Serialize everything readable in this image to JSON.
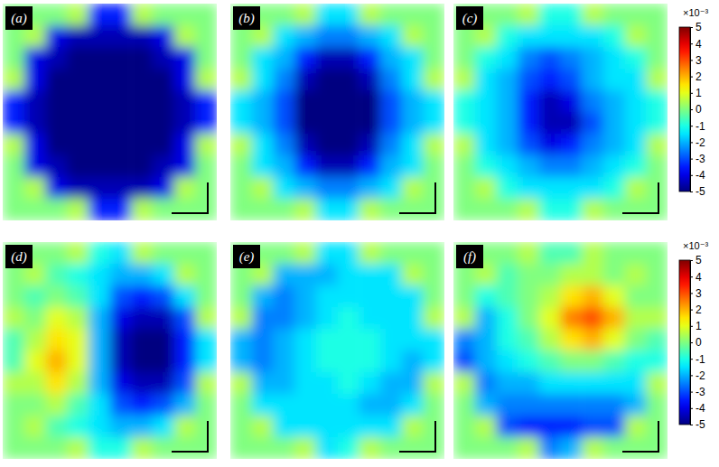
{
  "chart_data": {
    "type": "heatmap",
    "panels": [
      {
        "title": "(a)",
        "cells": [
          [
            0,
            0,
            0,
            0.5,
            -3.5,
            -3.5,
            0.5,
            0,
            0,
            0
          ],
          [
            0,
            0.5,
            -4,
            -4.5,
            -4.5,
            -4.5,
            -4.5,
            -4,
            0.5,
            0
          ],
          [
            0,
            -4,
            -4.5,
            -5,
            -5,
            -5,
            -5,
            -4.5,
            -4,
            0
          ],
          [
            0.5,
            -4,
            -5,
            -5,
            -5,
            -5,
            -5,
            -5,
            -4,
            0.5
          ],
          [
            -3.5,
            -4.5,
            -5,
            -5,
            -5,
            -5,
            -5,
            -5,
            -4.5,
            -3.5
          ],
          [
            -3.5,
            -4.5,
            -5,
            -5,
            -5,
            -5,
            -5,
            -5,
            -4.5,
            -3.5
          ],
          [
            0.5,
            -4,
            -5,
            -5,
            -5,
            -5,
            -5,
            -5,
            -4,
            0.5
          ],
          [
            0,
            -4,
            -4.5,
            -5,
            -5,
            -5,
            -5,
            -4.5,
            -4,
            0
          ],
          [
            0,
            0.5,
            -4,
            -4.5,
            -4.5,
            -4.5,
            -4.5,
            -4,
            0.5,
            0
          ],
          [
            0,
            0,
            0,
            0.5,
            -3.5,
            -3.5,
            0.5,
            0,
            0,
            0
          ]
        ]
      },
      {
        "title": "(b)",
        "cells": [
          [
            0,
            0,
            0,
            0.5,
            -1.5,
            -1.5,
            0.5,
            0,
            0,
            0
          ],
          [
            0,
            0.5,
            -1.5,
            -2,
            -2.5,
            -2.5,
            -2,
            -1.5,
            0.5,
            0
          ],
          [
            0,
            -1.5,
            -2,
            -3.5,
            -4.5,
            -4.5,
            -3.5,
            -2,
            -1.5,
            0
          ],
          [
            0.5,
            -1.5,
            -2.5,
            -4.5,
            -5,
            -5,
            -4.5,
            -2.5,
            -1.5,
            0.5
          ],
          [
            -1.5,
            -2,
            -3,
            -5,
            -5,
            -5,
            -5,
            -3,
            -2,
            -1.5
          ],
          [
            -1.5,
            -2,
            -3,
            -5,
            -5,
            -5,
            -5,
            -3,
            -2,
            -1.5
          ],
          [
            0.5,
            -1.5,
            -2.5,
            -4.5,
            -5,
            -5,
            -4.5,
            -2.5,
            -1.5,
            0.5
          ],
          [
            0,
            -1.5,
            -2,
            -3.5,
            -4.5,
            -4.5,
            -3.5,
            -2,
            -1.5,
            0
          ],
          [
            0,
            0.5,
            -1.5,
            -2,
            -2.5,
            -2.5,
            -2,
            -1.5,
            0.5,
            0
          ],
          [
            0,
            0,
            0,
            0.5,
            -1.5,
            -1.5,
            0.5,
            0,
            0,
            0
          ]
        ]
      },
      {
        "title": "(c)",
        "cells": [
          [
            0,
            0,
            0,
            0.5,
            -1,
            -1,
            0.5,
            0,
            0,
            0
          ],
          [
            0,
            0.5,
            -1,
            -1.5,
            -1.5,
            -1.5,
            -1.5,
            -1,
            0.5,
            0
          ],
          [
            0,
            -1,
            -1.5,
            -2.5,
            -3,
            -2.5,
            -2,
            -1.5,
            -1,
            0
          ],
          [
            0.5,
            -1.5,
            -2,
            -3,
            -3.5,
            -3,
            -2,
            -1.5,
            -1.5,
            0.5
          ],
          [
            -1,
            -1.5,
            -2,
            -3.5,
            -4.5,
            -4,
            -2.5,
            -2,
            -1.5,
            -1
          ],
          [
            -1,
            -1.5,
            -2,
            -3.5,
            -4.5,
            -4.5,
            -3,
            -2,
            -1.5,
            -1
          ],
          [
            0.5,
            -1.5,
            -2,
            -3,
            -4,
            -3.5,
            -2.5,
            -2,
            -1.5,
            0.5
          ],
          [
            0,
            -1,
            -1.5,
            -2,
            -2.5,
            -2.5,
            -2,
            -1.5,
            -1,
            0
          ],
          [
            0,
            0.5,
            -1,
            -1.5,
            -1.5,
            -1.5,
            -1.5,
            -1,
            0.5,
            0
          ],
          [
            0,
            0,
            0,
            0.5,
            -1,
            -1,
            0.5,
            0,
            0,
            0
          ]
        ]
      },
      {
        "title": "(d)",
        "cells": [
          [
            0,
            0,
            0,
            0.5,
            -1,
            -1.5,
            0.5,
            0,
            0,
            0
          ],
          [
            0,
            0.5,
            -0.5,
            -1,
            -1.5,
            -2,
            -2,
            -1.5,
            0.5,
            0
          ],
          [
            0,
            -0.5,
            0,
            -0.5,
            -1.5,
            -3,
            -3.5,
            -3,
            -1.5,
            0
          ],
          [
            0.5,
            0,
            1,
            0.5,
            -2,
            -4,
            -4.5,
            -4.5,
            -3,
            0.5
          ],
          [
            -0.5,
            0.5,
            1.5,
            1,
            -2,
            -4.5,
            -5,
            -5,
            -3.5,
            -1.5
          ],
          [
            -0.5,
            1,
            2,
            1,
            -2,
            -4.5,
            -5,
            -5,
            -3.5,
            -1.5
          ],
          [
            0.5,
            0.5,
            1.5,
            0.5,
            -2,
            -4,
            -4.5,
            -4.5,
            -3,
            0.5
          ],
          [
            0,
            0,
            0.5,
            -0.5,
            -1.5,
            -3,
            -3.5,
            -3,
            -2,
            0
          ],
          [
            0,
            0.5,
            -0.5,
            -1,
            -1.5,
            -2,
            -2,
            -1.5,
            0.5,
            0
          ],
          [
            0,
            0,
            0,
            0.5,
            -1,
            -1,
            0.5,
            0,
            0,
            0
          ]
        ]
      },
      {
        "title": "(e)",
        "cells": [
          [
            0,
            0,
            0,
            0.5,
            -1.5,
            -1.5,
            0.5,
            0,
            0,
            0
          ],
          [
            0,
            0.5,
            -2,
            -2,
            -2,
            -1.5,
            -1.5,
            -1.5,
            0.5,
            0
          ],
          [
            0,
            -2,
            -2.5,
            -2,
            -1.5,
            -1.5,
            -1.5,
            -1.5,
            -1.5,
            0
          ],
          [
            0.5,
            -2.5,
            -2.5,
            -2,
            -1.5,
            -1,
            -1.5,
            -1.5,
            -1.5,
            0.5
          ],
          [
            -2,
            -2.5,
            -2,
            -1.5,
            -1,
            -1,
            -1,
            -1.5,
            -1.5,
            -1.5
          ],
          [
            -2,
            -2.5,
            -2,
            -1.5,
            -1,
            -1,
            -1,
            -1.5,
            -2,
            -1.5
          ],
          [
            0.5,
            -2,
            -2,
            -1.5,
            -1.5,
            -1,
            -1.5,
            -2,
            -2,
            0.5
          ],
          [
            0,
            -1.5,
            -1.5,
            -1.5,
            -1.5,
            -1.5,
            -2,
            -2,
            -1.5,
            0
          ],
          [
            0,
            0.5,
            -1.5,
            -1.5,
            -1.5,
            -1.5,
            -1.5,
            -1.5,
            0.5,
            0
          ],
          [
            0,
            0,
            0,
            0.5,
            -1.5,
            -1,
            0.5,
            0,
            0,
            0
          ]
        ]
      },
      {
        "title": "(f)",
        "cells": [
          [
            0,
            0,
            0,
            0.5,
            -0.5,
            -0.5,
            0.5,
            0,
            0,
            0
          ],
          [
            0,
            0.5,
            -0.5,
            0,
            0,
            0.5,
            0.5,
            0,
            0.5,
            0
          ],
          [
            0,
            -1,
            -0.5,
            0,
            0.5,
            1.5,
            2,
            1,
            0,
            0
          ],
          [
            0.5,
            -2,
            -1,
            0,
            1,
            2.5,
            3,
            2,
            0.5,
            0.5
          ],
          [
            -2.5,
            -2,
            -1,
            -0.5,
            0.5,
            1.5,
            2,
            1,
            0,
            -0.5
          ],
          [
            -3,
            -2,
            -1.5,
            -1,
            -0.5,
            0,
            0,
            -0.5,
            -1,
            -1
          ],
          [
            0.5,
            -2.5,
            -2,
            -2,
            -1.5,
            -1.5,
            -1.5,
            -1.5,
            -1.5,
            0.5
          ],
          [
            0,
            -2,
            -2.5,
            -2.5,
            -2.5,
            -2.5,
            -2.5,
            -2.5,
            -2,
            0
          ],
          [
            0,
            0.5,
            -3,
            -3.5,
            -3.5,
            -3.5,
            -3,
            -3,
            0.5,
            0
          ],
          [
            0,
            0,
            0,
            0.5,
            -2.5,
            -2,
            0.5,
            0,
            0,
            0
          ]
        ]
      }
    ],
    "colorbars": [
      {
        "range": [
          -5,
          5
        ],
        "ticks": [
          -5,
          -4,
          -3,
          -2,
          -1,
          0,
          1,
          2,
          3,
          4,
          5
        ],
        "label": "×10⁻³"
      },
      {
        "range": [
          -5,
          5
        ],
        "ticks": [
          -5,
          -4,
          -3,
          -2,
          -1,
          0,
          1,
          2,
          3,
          4,
          5
        ],
        "label": "×10⁻³"
      }
    ]
  }
}
